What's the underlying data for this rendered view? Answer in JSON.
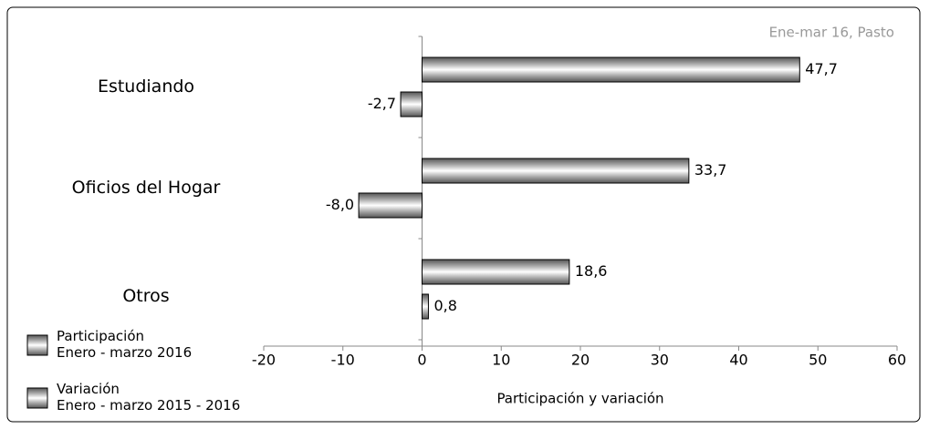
{
  "chart_data": {
    "type": "hbar",
    "annotation": "Ene-mar 16, Pasto",
    "x_label": "Participación y variación",
    "categories": [
      "Estudiando",
      "Oficios del Hogar",
      "Otros"
    ],
    "series": [
      {
        "name": "Participación\nEnero - marzo 2016",
        "color": "#a6a6a6",
        "values": [
          47.7,
          33.7,
          18.6
        ],
        "value_labels": [
          "47,7",
          "33,7",
          "18,6"
        ]
      },
      {
        "name": "Variación\nEnero - marzo 2015 - 2016",
        "color": "#a6a6a6",
        "values": [
          -2.7,
          -8.0,
          0.8
        ],
        "value_labels": [
          "-2,7",
          "-8,0",
          "0,8"
        ]
      }
    ],
    "xlim": [
      -20,
      60
    ],
    "xticks": [
      -20,
      -10,
      0,
      10,
      20,
      30,
      40,
      50,
      60
    ]
  }
}
